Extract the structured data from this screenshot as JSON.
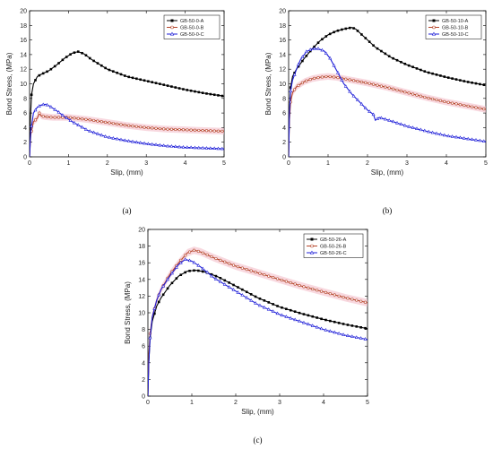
{
  "colors": {
    "A": "#000000",
    "B": "#b5452a",
    "C": "#1f1fd8",
    "band": "#f2b8c4"
  },
  "chart_data": [
    {
      "type": "line",
      "caption": "(a)",
      "xlabel": "Slip, (mm)",
      "ylabel": "Bond Stress, (MPa)",
      "xlim": [
        0,
        5
      ],
      "ylim": [
        0,
        20
      ],
      "xticks": [
        0,
        1,
        2,
        3,
        4,
        5
      ],
      "yticks": [
        0,
        2,
        4,
        6,
        8,
        10,
        12,
        14,
        16,
        18,
        20
      ],
      "legend_position": "top-right",
      "series": [
        {
          "name": "GB-50-0-A",
          "marker": "square",
          "color": "#000000",
          "x": [
            0,
            0.02,
            0.05,
            0.1,
            0.2,
            0.3,
            0.5,
            0.7,
            0.9,
            1.1,
            1.25,
            1.4,
            1.6,
            2.0,
            2.5,
            3.0,
            3.5,
            4.0,
            4.5,
            5.0
          ],
          "y": [
            0,
            5,
            8.5,
            10,
            11,
            11.3,
            11.8,
            12.6,
            13.5,
            14.2,
            14.4,
            14.1,
            13.3,
            12.0,
            11.0,
            10.4,
            9.8,
            9.2,
            8.7,
            8.3
          ]
        },
        {
          "name": "GB-50-0-B",
          "marker": "circle",
          "color": "#b5452a",
          "band": true,
          "x": [
            0,
            0.03,
            0.1,
            0.2,
            0.25,
            0.3,
            0.4,
            0.6,
            1.0,
            1.5,
            2.0,
            2.5,
            3.0,
            3.5,
            4.0,
            4.5,
            5.0
          ],
          "y": [
            0,
            3,
            4.8,
            5.3,
            6.0,
            5.6,
            5.5,
            5.4,
            5.4,
            5.1,
            4.7,
            4.3,
            4.0,
            3.8,
            3.7,
            3.6,
            3.5
          ]
        },
        {
          "name": "GB-50-0-C",
          "marker": "triangle",
          "color": "#1f1fd8",
          "x": [
            0,
            0.03,
            0.1,
            0.2,
            0.3,
            0.4,
            0.5,
            0.7,
            0.9,
            1.1,
            1.5,
            2.0,
            2.5,
            3.0,
            3.5,
            4.0,
            4.5,
            5.0
          ],
          "y": [
            0,
            3.5,
            6.0,
            6.8,
            7.1,
            7.2,
            7.0,
            6.3,
            5.5,
            4.8,
            3.6,
            2.7,
            2.2,
            1.8,
            1.5,
            1.3,
            1.2,
            1.1
          ]
        }
      ]
    },
    {
      "type": "line",
      "caption": "(b)",
      "xlabel": "Slip, (mm)",
      "ylabel": "Bond Stress, (MPa)",
      "xlim": [
        0,
        5
      ],
      "ylim": [
        0,
        20
      ],
      "xticks": [
        0,
        1,
        2,
        3,
        4,
        5
      ],
      "yticks": [
        0,
        2,
        4,
        6,
        8,
        10,
        12,
        14,
        16,
        18,
        20
      ],
      "legend_position": "top-right",
      "series": [
        {
          "name": "GB-50-10-A",
          "marker": "square",
          "color": "#000000",
          "x": [
            0,
            0.02,
            0.05,
            0.1,
            0.2,
            0.4,
            0.6,
            0.8,
            1.0,
            1.2,
            1.4,
            1.6,
            1.7,
            1.9,
            2.2,
            2.6,
            3.0,
            3.5,
            4.0,
            4.5,
            5.0
          ],
          "y": [
            0,
            6,
            9.5,
            11,
            12,
            13.5,
            14.8,
            15.9,
            16.7,
            17.2,
            17.5,
            17.7,
            17.5,
            16.5,
            15.0,
            13.6,
            12.6,
            11.6,
            10.9,
            10.3,
            9.8
          ]
        },
        {
          "name": "GB-50-10-B",
          "marker": "circle",
          "color": "#b5452a",
          "band": true,
          "x": [
            0,
            0.02,
            0.05,
            0.1,
            0.2,
            0.4,
            0.6,
            0.8,
            1.0,
            1.2,
            1.5,
            2.0,
            2.5,
            3.0,
            3.5,
            4.0,
            4.5,
            5.0
          ],
          "y": [
            0,
            5,
            7.5,
            8.8,
            9.6,
            10.3,
            10.7,
            10.9,
            11.0,
            10.9,
            10.6,
            10.1,
            9.5,
            8.8,
            8.1,
            7.5,
            7.0,
            6.5
          ]
        },
        {
          "name": "GB-50-10-C",
          "marker": "triangle",
          "color": "#1f1fd8",
          "x": [
            0,
            0.02,
            0.05,
            0.1,
            0.2,
            0.3,
            0.45,
            0.6,
            0.75,
            0.9,
            1.05,
            1.2,
            1.4,
            1.6,
            1.8,
            2.0,
            2.15,
            2.2,
            2.3,
            2.6,
            3.0,
            3.5,
            4.0,
            4.5,
            5.0
          ],
          "y": [
            0,
            6,
            9,
            10.5,
            12,
            13.3,
            14.4,
            14.8,
            14.8,
            14.5,
            13.5,
            12.0,
            10.0,
            8.6,
            7.5,
            6.4,
            5.8,
            5.0,
            5.4,
            4.9,
            4.2,
            3.5,
            2.9,
            2.5,
            2.1
          ]
        }
      ]
    },
    {
      "type": "line",
      "caption": "(c)",
      "xlabel": "Slip, (mm)",
      "ylabel": "Bond Stress, (MPa)",
      "xlim": [
        0,
        5
      ],
      "ylim": [
        0,
        20
      ],
      "xticks": [
        0,
        1,
        2,
        3,
        4,
        5
      ],
      "yticks": [
        0,
        2,
        4,
        6,
        8,
        10,
        12,
        14,
        16,
        18,
        20
      ],
      "legend_position": "top-right",
      "series": [
        {
          "name": "GB-50-26-A",
          "marker": "square",
          "color": "#000000",
          "x": [
            0,
            0.02,
            0.05,
            0.1,
            0.2,
            0.3,
            0.5,
            0.7,
            0.9,
            1.1,
            1.3,
            1.6,
            2.0,
            2.5,
            3.0,
            3.5,
            4.0,
            4.5,
            5.0
          ],
          "y": [
            0,
            4,
            7,
            9,
            10.8,
            11.8,
            13.3,
            14.4,
            15.0,
            15.1,
            14.9,
            14.3,
            13.2,
            11.8,
            10.7,
            9.9,
            9.2,
            8.6,
            8.1
          ]
        },
        {
          "name": "GB-50-26-B",
          "marker": "circle",
          "color": "#b5452a",
          "band": true,
          "x": [
            0,
            0.02,
            0.05,
            0.1,
            0.2,
            0.3,
            0.5,
            0.7,
            0.9,
            1.05,
            1.2,
            1.5,
            2.0,
            2.5,
            3.0,
            3.5,
            4.0,
            4.5,
            5.0
          ],
          "y": [
            0,
            5,
            7.5,
            9.5,
            11.5,
            12.8,
            14.6,
            16.0,
            17.2,
            17.5,
            17.3,
            16.6,
            15.6,
            14.8,
            14.0,
            13.2,
            12.5,
            11.8,
            11.2
          ]
        },
        {
          "name": "GB-50-26-C",
          "marker": "triangle",
          "color": "#1f1fd8",
          "x": [
            0,
            0.02,
            0.05,
            0.1,
            0.2,
            0.3,
            0.5,
            0.7,
            0.85,
            1.0,
            1.2,
            1.5,
            2.0,
            2.5,
            3.0,
            3.5,
            4.0,
            4.5,
            5.0
          ],
          "y": [
            0,
            4,
            7,
            9.5,
            11.5,
            12.8,
            14.4,
            15.8,
            16.4,
            16.2,
            15.5,
            14.2,
            12.6,
            11.0,
            9.8,
            8.9,
            8.0,
            7.3,
            6.8
          ]
        }
      ]
    }
  ]
}
